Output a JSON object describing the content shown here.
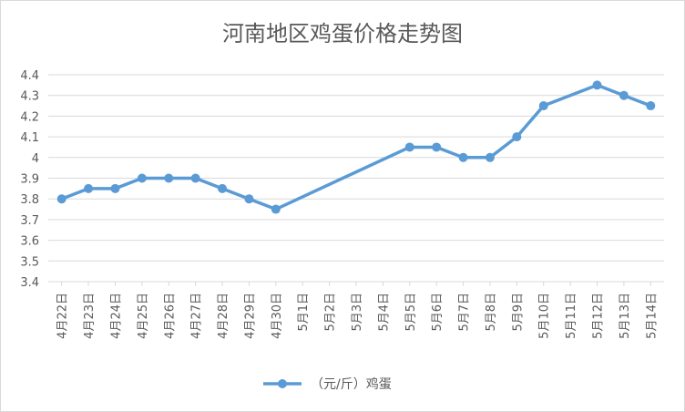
{
  "chart_data": {
    "type": "line",
    "title": "河南地区鸡蛋价格走势图",
    "xlabel": "",
    "ylabel": "",
    "ylim": [
      3.4,
      4.4
    ],
    "yticks": [
      "3.4",
      "3.5",
      "3.6",
      "3.7",
      "3.8",
      "3.9",
      "4",
      "4.1",
      "4.2",
      "4.3",
      "4.4"
    ],
    "categories": [
      "4月22日",
      "4月23日",
      "4月24日",
      "4月25日",
      "4月26日",
      "4月27日",
      "4月28日",
      "4月29日",
      "4月30日",
      "5月1日",
      "5月2日",
      "5月3日",
      "5月4日",
      "5月5日",
      "5月6日",
      "5月7日",
      "5月8日",
      "5月9日",
      "5月10日",
      "5月11日",
      "5月12日",
      "5月13日",
      "5月14日"
    ],
    "series": [
      {
        "name": "（元/斤）鸡蛋",
        "values": [
          3.8,
          3.85,
          3.85,
          3.9,
          3.9,
          3.9,
          3.85,
          3.8,
          3.75,
          null,
          null,
          null,
          null,
          4.05,
          4.05,
          4.0,
          4.0,
          4.1,
          4.25,
          null,
          4.35,
          4.3,
          4.25
        ],
        "color": "#5b9bd5"
      }
    ],
    "grid": true,
    "legend": "bottom"
  }
}
